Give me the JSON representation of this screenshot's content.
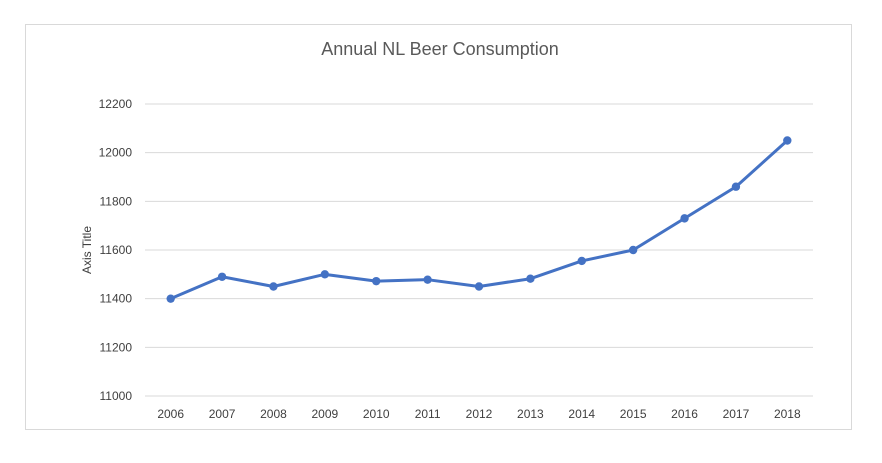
{
  "chart_data": {
    "type": "line",
    "title": "Annual NL Beer Consumption",
    "ylabel": "Axis Title",
    "xlabel": "",
    "categories": [
      "2006",
      "2007",
      "2008",
      "2009",
      "2010",
      "2011",
      "2012",
      "2013",
      "2014",
      "2015",
      "2016",
      "2017",
      "2018"
    ],
    "series": [
      {
        "values": [
          11400,
          11490,
          11450,
          11500,
          11472,
          11478,
          11450,
          11482,
          11555,
          11600,
          11730,
          11860,
          12050
        ],
        "color": "#4472c4"
      }
    ],
    "ylim": [
      11000,
      12200
    ],
    "yticks": [
      "11000",
      "11200",
      "11400",
      "11600",
      "11800",
      "12000",
      "12200"
    ],
    "grid": true,
    "legend": "none"
  }
}
